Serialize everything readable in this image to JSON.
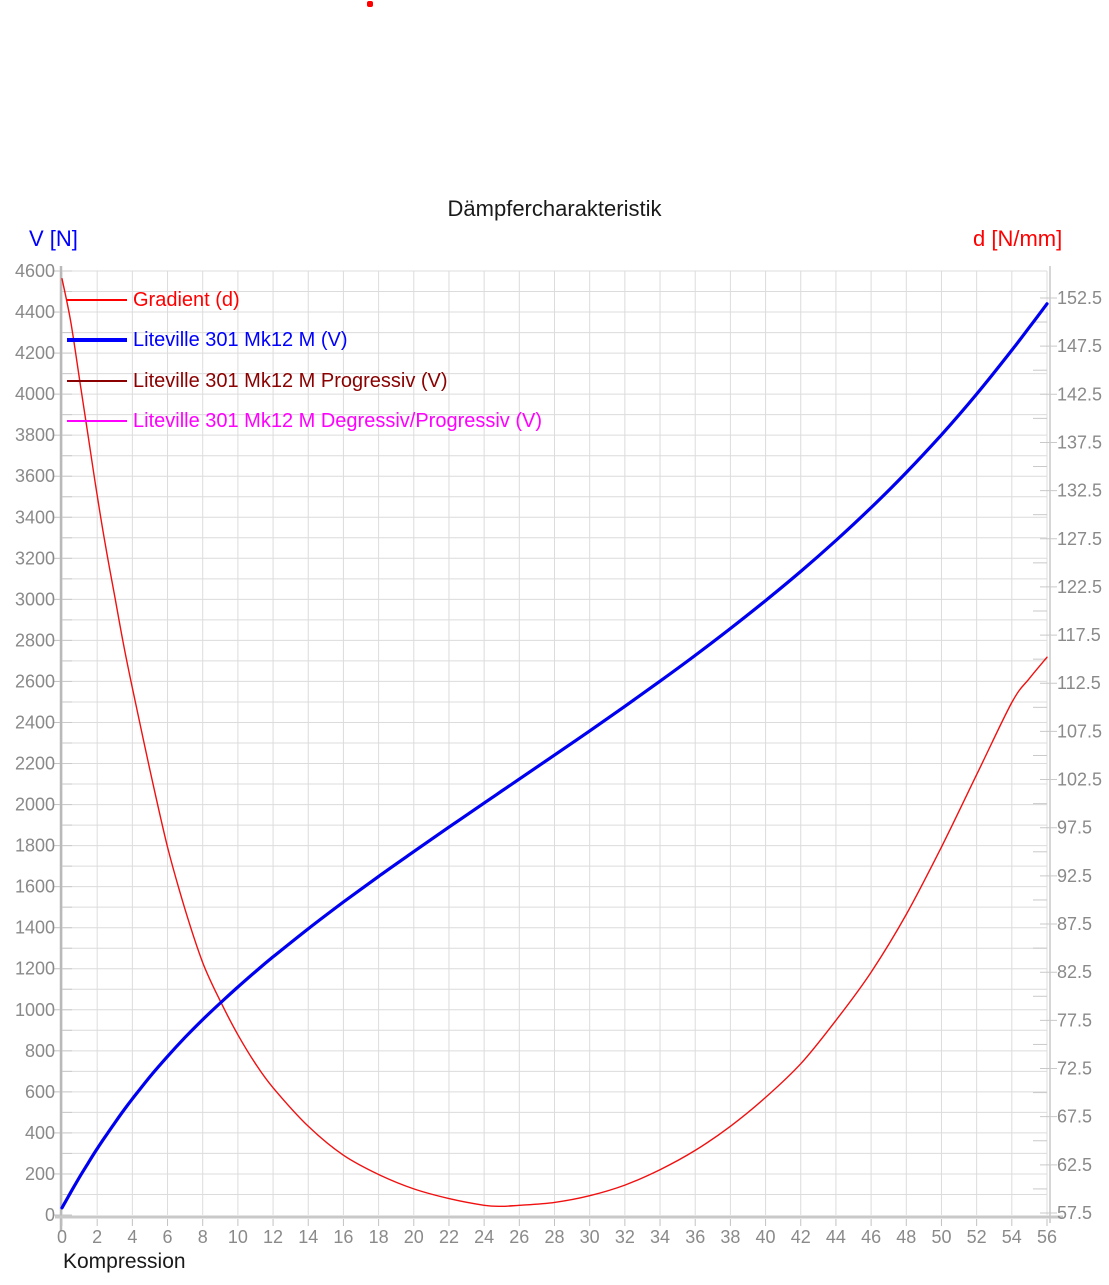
{
  "window": {
    "background": "#ffffff",
    "indicator_dot_color": "#ff0000"
  },
  "chart_data": {
    "type": "line",
    "title": "Dämpfercharakteristik",
    "x_axis": {
      "label": "Kompression",
      "min": 0,
      "max": 56,
      "tick_step": 2,
      "tick_labels": [
        "0",
        "2",
        "4",
        "6",
        "8",
        "10",
        "12",
        "14",
        "16",
        "18",
        "20",
        "22",
        "24",
        "26",
        "28",
        "30",
        "32",
        "34",
        "36",
        "38",
        "40",
        "42",
        "44",
        "46",
        "48",
        "50",
        "52",
        "54",
        "56"
      ],
      "tick_color": "#8a8a8a"
    },
    "y_axis_left": {
      "label": "V [N]",
      "title_color": "#0000ff",
      "min": 0,
      "max": 4600,
      "label_step": 200,
      "grid_step": 100,
      "tick_labels": [
        "0",
        "200",
        "400",
        "600",
        "800",
        "1000",
        "1200",
        "1400",
        "1600",
        "1800",
        "2000",
        "2200",
        "2400",
        "2600",
        "2800",
        "3000",
        "3200",
        "3400",
        "3600",
        "3800",
        "4000",
        "4200",
        "4400",
        "4600"
      ],
      "tick_color": "#8a8a8a"
    },
    "y_axis_right": {
      "label": "d [N/mm]",
      "title_color": "#ff0000",
      "min": 57.5,
      "max": 152.5,
      "label_step": 5,
      "minor_tick_step": 2.5,
      "tick_labels": [
        "57.5",
        "62.5",
        "67.5",
        "72.5",
        "77.5",
        "82.5",
        "87.5",
        "92.5",
        "97.5",
        "102.5",
        "107.5",
        "112.5",
        "117.5",
        "122.5",
        "127.5",
        "132.5",
        "137.5",
        "142.5",
        "147.5",
        "152.5"
      ],
      "tick_color": "#8a8a8a"
    },
    "grid": {
      "show": true,
      "color": "#dcdcdc",
      "axis_color": "#bebebe"
    },
    "legend": {
      "position": "top-left",
      "items": [
        {
          "label": "Gradient (d)",
          "color": "#ff0000",
          "line_width": 1.5,
          "curve_visible": true
        },
        {
          "label": "Liteville 301 Mk12 M (V)",
          "color": "#0000ff",
          "line_width": 4,
          "curve_visible": true
        },
        {
          "label": "Liteville 301 Mk12 M Progressiv (V)",
          "color": "#8b0000",
          "line_width": 1.5,
          "curve_visible": false
        },
        {
          "label": "Liteville 301 Mk12 M Degressiv/Progressiv (V)",
          "color": "#ff00ff",
          "line_width": 2,
          "curve_visible": false
        }
      ],
      "note": "Progressiv and Degressiv/Progressiv curves coincide with the blue V curve and are not separately visible"
    },
    "series": [
      {
        "name": "Gradient (d)",
        "axis": "right",
        "color": "#f01010",
        "stroke_width": 1.4,
        "points": [
          [
            0,
            154.5
          ],
          [
            0.5,
            150
          ],
          [
            1,
            144
          ],
          [
            1.5,
            138
          ],
          [
            2,
            132
          ],
          [
            2.5,
            126.5
          ],
          [
            3,
            121.5
          ],
          [
            3.5,
            116.5
          ],
          [
            4,
            112
          ],
          [
            5,
            103.5
          ],
          [
            6,
            95.5
          ],
          [
            7,
            89
          ],
          [
            8,
            83.5
          ],
          [
            9,
            79.5
          ],
          [
            10,
            76
          ],
          [
            11,
            73
          ],
          [
            12,
            70.5
          ],
          [
            14,
            66.5
          ],
          [
            16,
            63.5
          ],
          [
            18,
            61.5
          ],
          [
            20,
            60
          ],
          [
            22,
            59
          ],
          [
            24,
            58.3
          ],
          [
            25,
            58.2
          ],
          [
            26,
            58.3
          ],
          [
            28,
            58.6
          ],
          [
            30,
            59.3
          ],
          [
            32,
            60.4
          ],
          [
            34,
            62
          ],
          [
            36,
            64
          ],
          [
            38,
            66.5
          ],
          [
            40,
            69.5
          ],
          [
            42,
            73
          ],
          [
            44,
            77.5
          ],
          [
            46,
            82.5
          ],
          [
            48,
            88.5
          ],
          [
            50,
            95.5
          ],
          [
            52,
            103
          ],
          [
            54,
            110.5
          ],
          [
            55,
            113
          ],
          [
            56,
            115.2
          ]
        ]
      },
      {
        "name": "Liteville 301 Mk12 M (V)",
        "axis": "left",
        "color": "#0000f0",
        "stroke_width": 3.2,
        "points": [
          [
            0,
            35
          ],
          [
            0.5,
            111
          ],
          [
            1,
            185
          ],
          [
            1.5,
            255
          ],
          [
            2,
            323
          ],
          [
            2.5,
            387
          ],
          [
            3,
            449
          ],
          [
            3.5,
            509
          ],
          [
            4,
            566
          ],
          [
            5,
            674
          ],
          [
            6,
            773
          ],
          [
            7,
            866
          ],
          [
            8,
            952
          ],
          [
            9,
            1033
          ],
          [
            10,
            1111
          ],
          [
            11,
            1186
          ],
          [
            12,
            1258
          ],
          [
            14,
            1395
          ],
          [
            16,
            1525
          ],
          [
            18,
            1650
          ],
          [
            20,
            1771
          ],
          [
            22,
            1890
          ],
          [
            24,
            2007
          ],
          [
            25,
            2066
          ],
          [
            26,
            2124
          ],
          [
            28,
            2241
          ],
          [
            30,
            2359
          ],
          [
            32,
            2479
          ],
          [
            34,
            2601
          ],
          [
            36,
            2727
          ],
          [
            38,
            2858
          ],
          [
            40,
            2994
          ],
          [
            42,
            3136
          ],
          [
            44,
            3287
          ],
          [
            46,
            3447
          ],
          [
            48,
            3618
          ],
          [
            50,
            3802
          ],
          [
            52,
            4000
          ],
          [
            54,
            4214
          ],
          [
            55,
            4326
          ],
          [
            56,
            4440
          ]
        ]
      }
    ]
  }
}
